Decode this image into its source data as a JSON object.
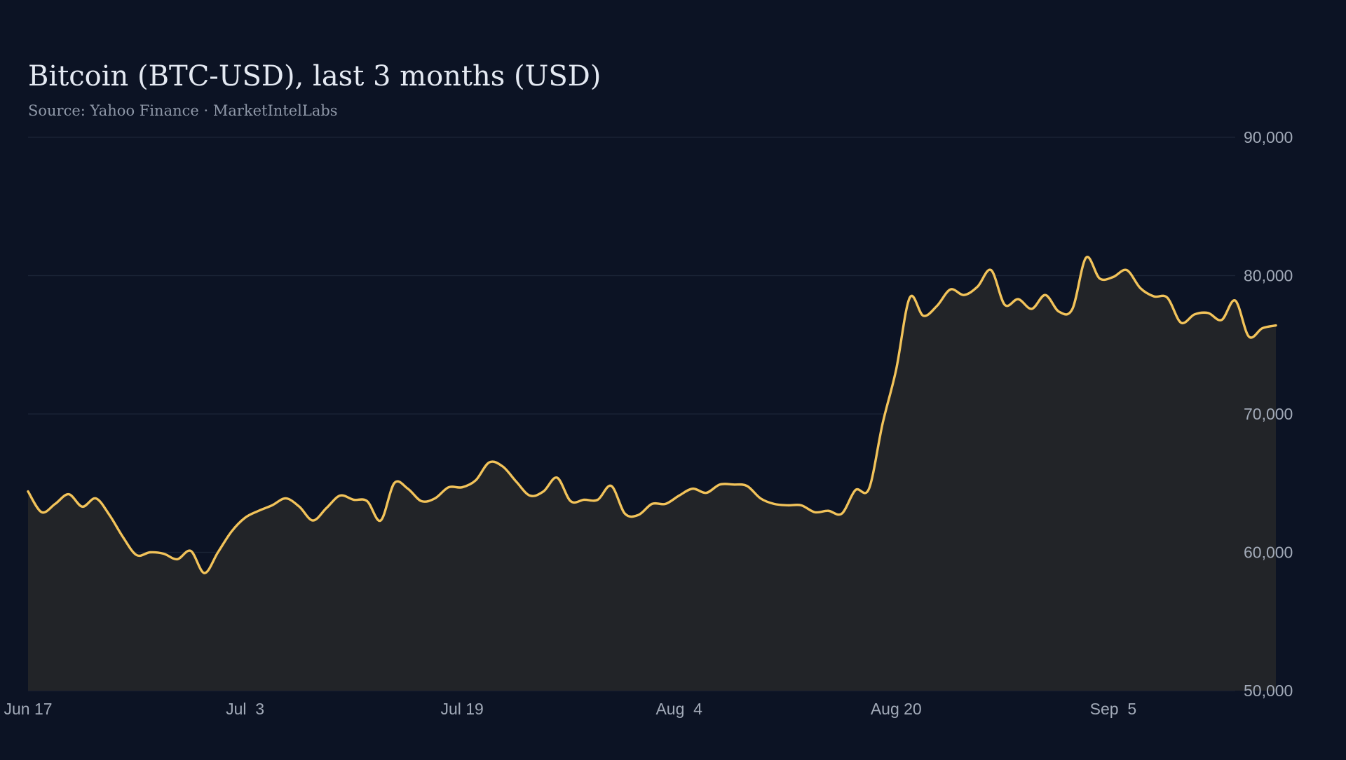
{
  "chart_data": {
    "type": "area",
    "title": "Bitcoin (BTC-USD), last 3 months (USD)",
    "subtitle": "Source: Yahoo Finance · MarketIntelLabs",
    "xlabel": "",
    "ylabel": "",
    "x_start": "2025-06-17",
    "x_end": "2025-09-14",
    "xlim": [
      "2025-06-17",
      "2025-09-14"
    ],
    "ylim": [
      50000,
      90000
    ],
    "y_ticks": [
      {
        "value": 50000,
        "label": "50,000"
      },
      {
        "value": 60000,
        "label": "60,000"
      },
      {
        "value": 70000,
        "label": "70,000"
      },
      {
        "value": 80000,
        "label": "80,000"
      },
      {
        "value": 90000,
        "label": "90,000"
      }
    ],
    "x_ticks": [
      {
        "date": "2025-06-17",
        "label": "Jun 17"
      },
      {
        "date": "2025-07-03",
        "label": "Jul  3"
      },
      {
        "date": "2025-07-19",
        "label": "Jul 19"
      },
      {
        "date": "2025-08-04",
        "label": "Aug  4"
      },
      {
        "date": "2025-08-20",
        "label": "Aug 20"
      },
      {
        "date": "2025-09-05",
        "label": "Sep  5"
      }
    ],
    "grid": true,
    "legend": "none",
    "y_axis_position": "right",
    "colors": {
      "background": "#0c1324",
      "line": "#f2c35a",
      "area": "#222428",
      "grid": "#1c2537",
      "title": "#e4e9f2",
      "subtitle": "#8f98a8",
      "ticks": "#a2aab8"
    },
    "series": [
      {
        "values": [
          [
            0,
            64400
          ],
          [
            1,
            62900
          ],
          [
            2,
            63500
          ],
          [
            3,
            64200
          ],
          [
            4,
            63300
          ],
          [
            5,
            63900
          ],
          [
            6,
            62700
          ],
          [
            7,
            61100
          ],
          [
            8,
            59800
          ],
          [
            9,
            60000
          ],
          [
            10,
            59900
          ],
          [
            11,
            59500
          ],
          [
            12,
            60100
          ],
          [
            13,
            58500
          ],
          [
            14,
            60000
          ],
          [
            15,
            61500
          ],
          [
            16,
            62500
          ],
          [
            17,
            63000
          ],
          [
            18,
            63400
          ],
          [
            19,
            63900
          ],
          [
            20,
            63300
          ],
          [
            21,
            62300
          ],
          [
            22,
            63200
          ],
          [
            23,
            64100
          ],
          [
            24,
            63800
          ],
          [
            25,
            63700
          ],
          [
            26,
            62300
          ],
          [
            27,
            65000
          ],
          [
            28,
            64600
          ],
          [
            29,
            63700
          ],
          [
            30,
            63900
          ],
          [
            31,
            64700
          ],
          [
            32,
            64700
          ],
          [
            33,
            65200
          ],
          [
            34,
            66500
          ],
          [
            35,
            66200
          ],
          [
            36,
            65100
          ],
          [
            37,
            64100
          ],
          [
            38,
            64400
          ],
          [
            39,
            65400
          ],
          [
            40,
            63700
          ],
          [
            41,
            63800
          ],
          [
            42,
            63800
          ],
          [
            43,
            64800
          ],
          [
            44,
            62800
          ],
          [
            45,
            62700
          ],
          [
            46,
            63500
          ],
          [
            47,
            63500
          ],
          [
            48,
            64100
          ],
          [
            49,
            64600
          ],
          [
            50,
            64300
          ],
          [
            51,
            64900
          ],
          [
            52,
            64900
          ],
          [
            53,
            64800
          ],
          [
            54,
            63900
          ],
          [
            55,
            63500
          ],
          [
            56,
            63400
          ],
          [
            57,
            63400
          ],
          [
            58,
            62900
          ],
          [
            59,
            63000
          ],
          [
            60,
            62800
          ],
          [
            61,
            64500
          ],
          [
            62,
            64600
          ],
          [
            63,
            69300
          ],
          [
            64,
            73200
          ],
          [
            65,
            78400
          ],
          [
            66,
            77100
          ],
          [
            67,
            77800
          ],
          [
            68,
            79000
          ],
          [
            69,
            78600
          ],
          [
            70,
            79200
          ],
          [
            71,
            80400
          ],
          [
            72,
            77900
          ],
          [
            73,
            78300
          ],
          [
            74,
            77600
          ],
          [
            75,
            78600
          ],
          [
            76,
            77400
          ],
          [
            77,
            77600
          ],
          [
            78,
            81300
          ],
          [
            79,
            79800
          ],
          [
            80,
            79900
          ],
          [
            81,
            80400
          ],
          [
            82,
            79100
          ],
          [
            83,
            78500
          ],
          [
            84,
            78400
          ],
          [
            85,
            76600
          ],
          [
            86,
            77200
          ],
          [
            87,
            77300
          ],
          [
            88,
            76800
          ],
          [
            89,
            78200
          ],
          [
            90,
            75600
          ],
          [
            91,
            76200
          ],
          [
            92,
            76400
          ]
        ]
      }
    ]
  }
}
